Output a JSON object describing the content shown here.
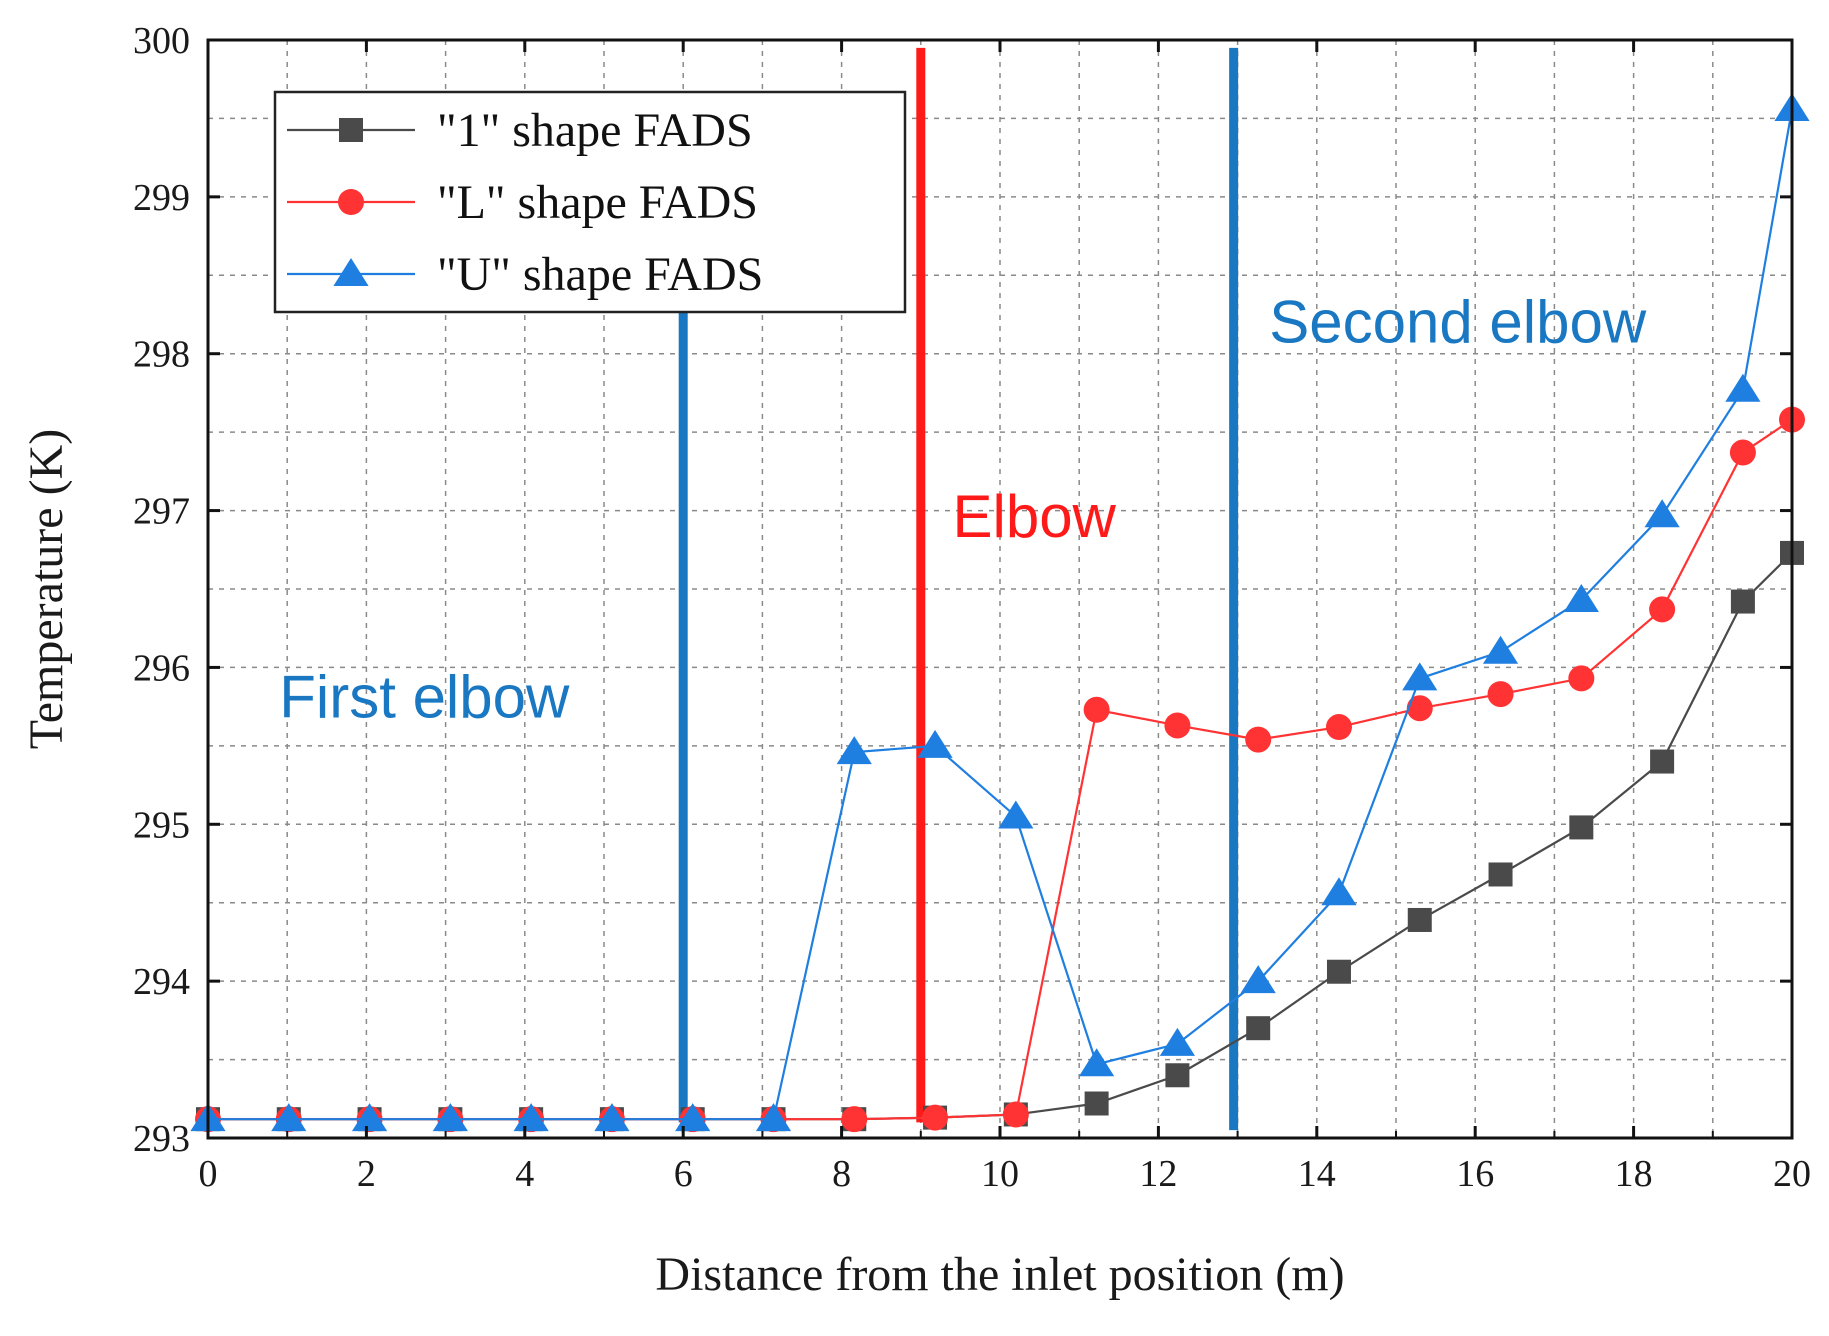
{
  "chart_data": {
    "type": "line",
    "title": "",
    "xlabel": "Distance from the inlet position (m)",
    "ylabel": "Temperature (K)",
    "xlim": [
      0,
      20
    ],
    "ylim": [
      293,
      300
    ],
    "xticks": [
      0,
      2,
      4,
      6,
      8,
      10,
      12,
      14,
      16,
      18,
      20
    ],
    "yticks": [
      293,
      294,
      295,
      296,
      297,
      298,
      299,
      300
    ],
    "grid": true,
    "legend_position": "top-left",
    "series": [
      {
        "name": "\"1\" shape FADS",
        "color": "#4a4a4a",
        "marker": "square",
        "x": [
          0,
          1.02,
          2.04,
          3.06,
          4.08,
          5.1,
          6.12,
          7.14,
          8.16,
          9.18,
          10.2,
          11.22,
          12.24,
          13.26,
          14.28,
          15.3,
          16.32,
          17.34,
          18.36,
          19.38,
          20
        ],
        "y": [
          293.12,
          293.12,
          293.12,
          293.12,
          293.12,
          293.12,
          293.12,
          293.12,
          293.12,
          293.13,
          293.15,
          293.22,
          293.4,
          293.7,
          294.06,
          294.39,
          294.68,
          294.98,
          295.4,
          296.42,
          296.73
        ]
      },
      {
        "name": "\"L\" shape FADS",
        "color": "#ff3333",
        "marker": "circle",
        "x": [
          0,
          1.02,
          2.04,
          3.06,
          4.08,
          5.1,
          6.12,
          7.14,
          8.16,
          9.18,
          10.2,
          11.22,
          12.24,
          13.26,
          14.28,
          15.3,
          16.32,
          17.34,
          18.36,
          19.38,
          20
        ],
        "y": [
          293.12,
          293.12,
          293.12,
          293.12,
          293.12,
          293.12,
          293.12,
          293.12,
          293.12,
          293.13,
          293.15,
          295.73,
          295.63,
          295.54,
          295.62,
          295.74,
          295.83,
          295.93,
          296.37,
          297.37,
          297.58
        ]
      },
      {
        "name": "\"U\" shape FADS",
        "color": "#1f7fe0",
        "marker": "triangle",
        "x": [
          0,
          1.02,
          2.04,
          3.06,
          4.08,
          5.1,
          6.12,
          7.14,
          8.16,
          9.18,
          10.2,
          11.22,
          12.24,
          13.26,
          14.28,
          15.3,
          16.32,
          17.34,
          18.36,
          19.38,
          20
        ],
        "y": [
          293.12,
          293.12,
          293.12,
          293.12,
          293.12,
          293.12,
          293.12,
          293.12,
          295.46,
          295.5,
          295.05,
          293.47,
          293.6,
          294.0,
          294.56,
          295.93,
          296.1,
          296.43,
          296.97,
          297.77,
          299.56
        ]
      }
    ],
    "reference_lines": [
      {
        "name": "first-elbow-line",
        "x": 6.0,
        "y_from": 293.1,
        "y_to": 298.27,
        "color": "#1a78c2"
      },
      {
        "name": "elbow-line",
        "x": 9.0,
        "y_from": 293.1,
        "y_to": 299.95,
        "color": "#ff1a1a"
      },
      {
        "name": "second-elbow-line",
        "x": 12.95,
        "y_from": 293.05,
        "y_to": 299.95,
        "color": "#1a78c2"
      }
    ],
    "annotations": [
      {
        "name": "first-elbow-label",
        "text": "First elbow",
        "x": 0.9,
        "y": 295.68,
        "color": "#1a78c2"
      },
      {
        "name": "elbow-label",
        "text": "Elbow",
        "x": 9.4,
        "y": 296.83,
        "color": "#ff1a1a"
      },
      {
        "name": "second-elbow-label",
        "text": "Second elbow",
        "x": 13.4,
        "y": 298.07,
        "color": "#1a78c2"
      }
    ]
  }
}
